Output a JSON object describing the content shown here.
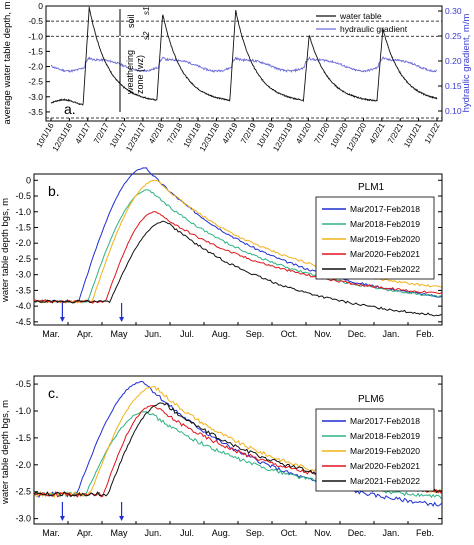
{
  "figure_title": "",
  "panel_a": {
    "panel_label": "a.",
    "ylabel_left": "average water table depth,  m",
    "ylabel_right": "hydraulic gradient,  m/m",
    "left_ticks": [
      "0",
      "-0.5",
      "-1.0",
      "-1.5",
      "-2.0",
      "-2.5",
      "-3.0",
      "-3.5"
    ],
    "right_ticks": [
      "0.30",
      "0.25",
      "0.20",
      "0.15",
      "0.10"
    ],
    "x_ticks": [
      "10/1/16",
      "12/31/16",
      "4/1/17",
      "7/2/17",
      "10/1/17",
      "12/31/17",
      "4/2/18",
      "7/2/18",
      "10/1/18",
      "12/31/18",
      "4/2/19",
      "7/2/19",
      "10/1/19",
      "12/31/19",
      "4/1/20",
      "7/1/20",
      "10/1/20",
      "12/31/20",
      "4/2/21",
      "7/2/21",
      "10/1/21",
      "1/1/22"
    ],
    "annotations": {
      "soil": "soil",
      "s1": "s1",
      "s2": "s2",
      "weathering": "weathering",
      "zone": "zone (wz)"
    },
    "legend": [
      "water table",
      "hydraulic gradient"
    ]
  },
  "panel_b": {
    "panel_label": "b.",
    "ylabel": "water table depth bgs,  m",
    "legend_title": "PLM1",
    "y_ticks": [
      "0",
      "-0.5",
      "-1.0",
      "-1.5",
      "-2.0",
      "-2.5",
      "-3.0",
      "-3.5",
      "-4.0",
      "-4.5"
    ],
    "legend": [
      "Mar2017-Feb2018",
      "Mar2018-Feb2019",
      "Mar2019-Feb2020",
      "Mar2020-Feb2021",
      "Mar2021-Feb2022"
    ]
  },
  "panel_c": {
    "panel_label": "c.",
    "ylabel": "water table depth bgs,  m",
    "legend_title": "PLM6",
    "y_ticks": [
      "-0.5",
      "-1.0",
      "-1.5",
      "-2.0",
      "-2.5",
      "-3.0"
    ],
    "legend": [
      "Mar2017-Feb2018",
      "Mar2018-Feb2019",
      "Mar2019-Feb2020",
      "Mar2020-Feb2021",
      "Mar2021-Feb2022"
    ]
  },
  "month_ticks": [
    "Mar.",
    "Apr.",
    "May",
    "Jun.",
    "Jul.",
    "Aug.",
    "Sep.",
    "Oct.",
    "Nov.",
    "Dec.",
    "Jan.",
    "Feb."
  ],
  "colors": {
    "Mar2017-Feb2018": "#1f2fd0",
    "Mar2018-Feb2019": "#2eb383",
    "Mar2019-Feb2020": "#f2b21a",
    "Mar2020-Feb2021": "#e0141a",
    "Mar2021-Feb2022": "#111111",
    "gradient": "#6a6ad8",
    "water_table": "#111111"
  },
  "chart_data": [
    {
      "type": "line",
      "panel": "a",
      "x": [
        "10/1/16",
        "4/1/17",
        "10/1/17",
        "4/2/18",
        "10/1/18",
        "4/2/19",
        "10/1/19",
        "4/1/20",
        "10/1/20",
        "4/2/21",
        "10/1/21",
        "1/1/22"
      ],
      "series": [
        {
          "name": "water table",
          "axis": "left",
          "peaks": [
            -0.05,
            -0.25,
            -0.15,
            -0.95,
            -0.75
          ],
          "baseline": -3.2
        },
        {
          "name": "hydraulic gradient",
          "axis": "right",
          "approx_range": [
            0.18,
            0.22
          ]
        }
      ],
      "reference_lines": [
        -0.5,
        -1.0,
        -3.7
      ],
      "ylim_left": [
        -3.8,
        0
      ],
      "ylim_right": [
        0.08,
        0.31
      ]
    },
    {
      "type": "line",
      "panel": "b",
      "title": "PLM1",
      "x": [
        "Mar.",
        "Apr.",
        "May",
        "Jun.",
        "Jul.",
        "Aug.",
        "Sep.",
        "Oct.",
        "Nov.",
        "Dec.",
        "Jan.",
        "Feb."
      ],
      "ylim": [
        -4.6,
        0.2
      ],
      "series": [
        {
          "name": "Mar2017-Feb2018",
          "peak": 0.4,
          "end": -3.7
        },
        {
          "name": "Mar2018-Feb2019",
          "peak": -0.3,
          "end": -3.7
        },
        {
          "name": "Mar2019-Feb2020",
          "peak": 0.0,
          "end": -3.4
        },
        {
          "name": "Mar2020-Feb2021",
          "peak": -1.0,
          "end": -3.6
        },
        {
          "name": "Mar2021-Feb2022",
          "peak": -1.3,
          "end": -4.3
        }
      ]
    },
    {
      "type": "line",
      "panel": "c",
      "title": "PLM6",
      "x": [
        "Mar.",
        "Apr.",
        "May",
        "Jun.",
        "Jul.",
        "Aug.",
        "Sep.",
        "Oct.",
        "Nov.",
        "Dec.",
        "Jan.",
        "Feb."
      ],
      "ylim": [
        -3.1,
        -0.35
      ],
      "series": [
        {
          "name": "Mar2017-Feb2018",
          "peak": -0.45,
          "end": -2.75
        },
        {
          "name": "Mar2018-Feb2019",
          "peak": -1.0,
          "end": -2.6
        },
        {
          "name": "Mar2019-Feb2020",
          "peak": -0.55,
          "end": -2.5
        },
        {
          "name": "Mar2020-Feb2021",
          "peak": -0.9,
          "end": -2.5
        },
        {
          "name": "Mar2021-Feb2022",
          "peak": -0.85,
          "end": -2.5
        }
      ]
    }
  ]
}
